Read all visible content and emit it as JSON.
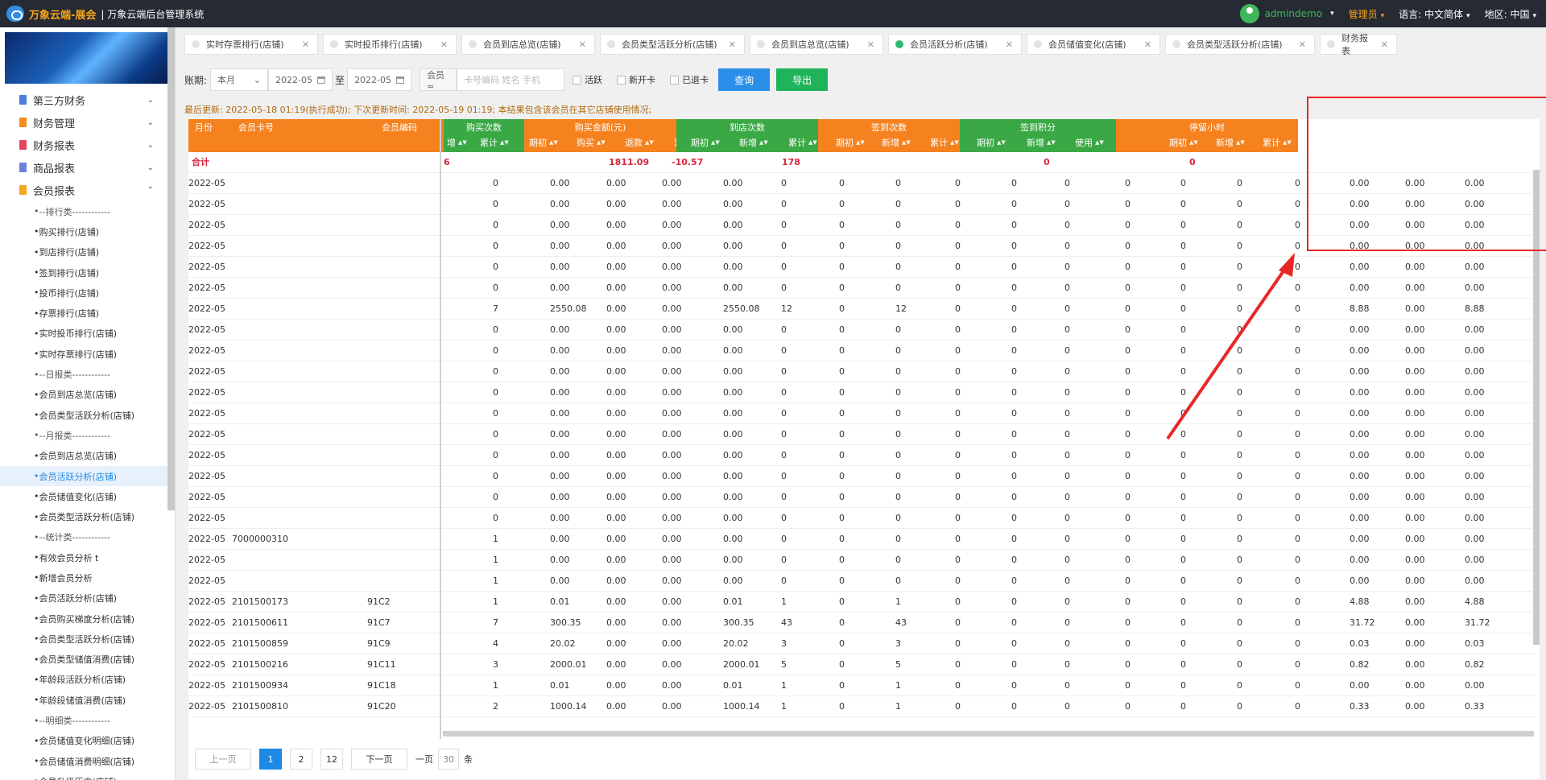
{
  "app": {
    "brand": "万象云端-展会",
    "subtitle": "| 万象云端后台管理系统"
  },
  "topbar": {
    "user": "admindemo",
    "role": "管理员",
    "lang_label": "语言:",
    "lang_value": "中文简体",
    "region_label": "地区:",
    "region_value": "中国"
  },
  "sidebar": {
    "groups": [
      {
        "label": "第三方财务",
        "color": "#4a7fd8"
      },
      {
        "label": "财务管理",
        "color": "#f58a1f"
      },
      {
        "label": "财务报表",
        "color": "#e8435f"
      },
      {
        "label": "商品报表",
        "color": "#6b7fe0"
      },
      {
        "label": "会员报表",
        "color": "#f5a623"
      }
    ],
    "items": [
      "--排行类------------",
      "购买排行(店铺)",
      "到店排行(店铺)",
      "签到排行(店铺)",
      "投币排行(店铺)",
      "存票排行(店铺)",
      "实时投币排行(店铺)",
      "实时存票排行(店铺)",
      "--日报类------------",
      "会员到店总览(店铺)",
      "会员类型活跃分析(店铺)",
      "--月报类------------",
      "会员到店总览(店铺)",
      "会员活跃分析(店铺)",
      "会员储值变化(店铺)",
      "会员类型活跃分析(店铺)",
      "--统计类------------",
      "有效会员分析 t",
      "新增会员分析",
      "会员活跃分析(店铺)",
      "会员购买梯度分析(店铺)",
      "会员类型活跃分析(店铺)",
      "会员类型储值消费(店铺)",
      "年龄段活跃分析(店铺)",
      "年龄段储值消费(店铺)",
      "--明细类------------",
      "会员储值变化明细(店铺)",
      "会员储值消费明细(店铺)",
      "会员升级历史(店铺)"
    ]
  },
  "tabs": [
    "实时存票排行(店铺)",
    "实时投币排行(店铺)",
    "会员到店总览(店铺)",
    "会员类型活跃分析(店铺)",
    "会员到店总览(店铺)",
    "会员活跃分析(店铺)",
    "会员储值变化(店铺)",
    "会员类型活跃分析(店铺)",
    "财务报表"
  ],
  "filter": {
    "label": "账期:",
    "period": "本月",
    "date_from": "2022-05",
    "to": "至",
    "date_to": "2022-05",
    "member": "会员 ≈",
    "placeholder": "卡号编码 姓名 手机",
    "checks": [
      "活跃",
      "新开卡",
      "已退卡"
    ],
    "query": "查询",
    "export": "导出"
  },
  "notice": "最后更新: 2022-05-18 01:19(执行成功); 下次更新时间: 2022-05-19 01:19; 本结果包含该会员在其它店铺使用情况;",
  "table": {
    "fixed_headers": [
      "月份",
      "会员卡号",
      "会员编码"
    ],
    "groups": [
      {
        "label": "购买次数",
        "sub": [
          "增",
          "累计"
        ]
      },
      {
        "label": "购买金额(元)",
        "sub": [
          "期初",
          "购买",
          "退款",
          "累计"
        ]
      },
      {
        "label": "到店次数",
        "sub": [
          "期初",
          "新增",
          "累计"
        ]
      },
      {
        "label": "签到次数",
        "sub": [
          "期初",
          "新增",
          "累计"
        ]
      },
      {
        "label": "签到积分",
        "sub": [
          "期初",
          "新增",
          "使用",
          "结存"
        ]
      },
      {
        "label": "停留小时",
        "sub": [
          "期初",
          "新增",
          "累计"
        ]
      }
    ],
    "summary": {
      "label": "合计",
      "buy_count": "6",
      "buy_amount": "1811.09",
      "refund": "-10.57",
      "visit": "178",
      "checkin": "0",
      "points": "0"
    },
    "rows": [
      [
        "2022-05",
        "",
        "",
        "0",
        "0.00",
        "0.00",
        "0.00",
        "0.00",
        "0",
        "0",
        "0",
        "0",
        "0",
        "0",
        "0",
        "0",
        "0",
        "0",
        "0.00",
        "0.00",
        "0.00"
      ],
      [
        "2022-05",
        "",
        "",
        "0",
        "0.00",
        "0.00",
        "0.00",
        "0.00",
        "0",
        "0",
        "0",
        "0",
        "0",
        "0",
        "0",
        "0",
        "0",
        "0",
        "0.00",
        "0.00",
        "0.00"
      ],
      [
        "2022-05",
        "",
        "",
        "0",
        "0.00",
        "0.00",
        "0.00",
        "0.00",
        "0",
        "0",
        "0",
        "0",
        "0",
        "0",
        "0",
        "0",
        "0",
        "0",
        "0.00",
        "0.00",
        "0.00"
      ],
      [
        "2022-05",
        "",
        "",
        "0",
        "0.00",
        "0.00",
        "0.00",
        "0.00",
        "0",
        "0",
        "0",
        "0",
        "0",
        "0",
        "0",
        "0",
        "0",
        "0",
        "0.00",
        "0.00",
        "0.00"
      ],
      [
        "2022-05",
        "",
        "",
        "0",
        "0.00",
        "0.00",
        "0.00",
        "0.00",
        "0",
        "0",
        "0",
        "0",
        "0",
        "0",
        "0",
        "0",
        "0",
        "0",
        "0.00",
        "0.00",
        "0.00"
      ],
      [
        "2022-05",
        "",
        "",
        "0",
        "0.00",
        "0.00",
        "0.00",
        "0.00",
        "0",
        "0",
        "0",
        "0",
        "0",
        "0",
        "0",
        "0",
        "0",
        "0",
        "0.00",
        "0.00",
        "0.00"
      ],
      [
        "2022-05",
        "",
        "",
        "7",
        "2550.08",
        "0.00",
        "0.00",
        "2550.08",
        "12",
        "0",
        "12",
        "0",
        "0",
        "0",
        "0",
        "0",
        "0",
        "0",
        "8.88",
        "0.00",
        "8.88"
      ],
      [
        "2022-05",
        "",
        "",
        "0",
        "0.00",
        "0.00",
        "0.00",
        "0.00",
        "0",
        "0",
        "0",
        "0",
        "0",
        "0",
        "0",
        "0",
        "0",
        "0",
        "0.00",
        "0.00",
        "0.00"
      ],
      [
        "2022-05",
        "",
        "",
        "0",
        "0.00",
        "0.00",
        "0.00",
        "0.00",
        "0",
        "0",
        "0",
        "0",
        "0",
        "0",
        "0",
        "0",
        "0",
        "0",
        "0.00",
        "0.00",
        "0.00"
      ],
      [
        "2022-05",
        "",
        "",
        "0",
        "0.00",
        "0.00",
        "0.00",
        "0.00",
        "0",
        "0",
        "0",
        "0",
        "0",
        "0",
        "0",
        "0",
        "0",
        "0",
        "0.00",
        "0.00",
        "0.00"
      ],
      [
        "2022-05",
        "",
        "",
        "0",
        "0.00",
        "0.00",
        "0.00",
        "0.00",
        "0",
        "0",
        "0",
        "0",
        "0",
        "0",
        "0",
        "0",
        "0",
        "0",
        "0.00",
        "0.00",
        "0.00"
      ],
      [
        "2022-05",
        "",
        "",
        "0",
        "0.00",
        "0.00",
        "0.00",
        "0.00",
        "0",
        "0",
        "0",
        "0",
        "0",
        "0",
        "0",
        "0",
        "0",
        "0",
        "0.00",
        "0.00",
        "0.00"
      ],
      [
        "2022-05",
        "",
        "",
        "0",
        "0.00",
        "0.00",
        "0.00",
        "0.00",
        "0",
        "0",
        "0",
        "0",
        "0",
        "0",
        "0",
        "0",
        "0",
        "0",
        "0.00",
        "0.00",
        "0.00"
      ],
      [
        "2022-05",
        "",
        "",
        "0",
        "0.00",
        "0.00",
        "0.00",
        "0.00",
        "0",
        "0",
        "0",
        "0",
        "0",
        "0",
        "0",
        "0",
        "0",
        "0",
        "0.00",
        "0.00",
        "0.00"
      ],
      [
        "2022-05",
        "",
        "",
        "0",
        "0.00",
        "0.00",
        "0.00",
        "0.00",
        "0",
        "0",
        "0",
        "0",
        "0",
        "0",
        "0",
        "0",
        "0",
        "0",
        "0.00",
        "0.00",
        "0.00"
      ],
      [
        "2022-05",
        "",
        "",
        "0",
        "0.00",
        "0.00",
        "0.00",
        "0.00",
        "0",
        "0",
        "0",
        "0",
        "0",
        "0",
        "0",
        "0",
        "0",
        "0",
        "0.00",
        "0.00",
        "0.00"
      ],
      [
        "2022-05",
        "",
        "",
        "0",
        "0.00",
        "0.00",
        "0.00",
        "0.00",
        "0",
        "0",
        "0",
        "0",
        "0",
        "0",
        "0",
        "0",
        "0",
        "0",
        "0.00",
        "0.00",
        "0.00"
      ],
      [
        "2022-05",
        "7000000310",
        "",
        "1",
        "0.00",
        "0.00",
        "0.00",
        "0.00",
        "0",
        "0",
        "0",
        "0",
        "0",
        "0",
        "0",
        "0",
        "0",
        "0",
        "0.00",
        "0.00",
        "0.00"
      ],
      [
        "2022-05",
        "",
        "",
        "1",
        "0.00",
        "0.00",
        "0.00",
        "0.00",
        "0",
        "0",
        "0",
        "0",
        "0",
        "0",
        "0",
        "0",
        "0",
        "0",
        "0.00",
        "0.00",
        "0.00"
      ],
      [
        "2022-05",
        "",
        "",
        "1",
        "0.00",
        "0.00",
        "0.00",
        "0.00",
        "0",
        "0",
        "0",
        "0",
        "0",
        "0",
        "0",
        "0",
        "0",
        "0",
        "0.00",
        "0.00",
        "0.00"
      ],
      [
        "2022-05",
        "2101500173",
        "91C2",
        "1",
        "0.01",
        "0.00",
        "0.00",
        "0.01",
        "1",
        "0",
        "1",
        "0",
        "0",
        "0",
        "0",
        "0",
        "0",
        "0",
        "4.88",
        "0.00",
        "4.88"
      ],
      [
        "2022-05",
        "2101500611",
        "91C7",
        "7",
        "300.35",
        "0.00",
        "0.00",
        "300.35",
        "43",
        "0",
        "43",
        "0",
        "0",
        "0",
        "0",
        "0",
        "0",
        "0",
        "31.72",
        "0.00",
        "31.72"
      ],
      [
        "2022-05",
        "2101500859",
        "91C9",
        "4",
        "20.02",
        "0.00",
        "0.00",
        "20.02",
        "3",
        "0",
        "3",
        "0",
        "0",
        "0",
        "0",
        "0",
        "0",
        "0",
        "0.03",
        "0.00",
        "0.03"
      ],
      [
        "2022-05",
        "2101500216",
        "91C11",
        "3",
        "2000.01",
        "0.00",
        "0.00",
        "2000.01",
        "5",
        "0",
        "5",
        "0",
        "0",
        "0",
        "0",
        "0",
        "0",
        "0",
        "0.82",
        "0.00",
        "0.82"
      ],
      [
        "2022-05",
        "2101500934",
        "91C18",
        "1",
        "0.01",
        "0.00",
        "0.00",
        "0.01",
        "1",
        "0",
        "1",
        "0",
        "0",
        "0",
        "0",
        "0",
        "0",
        "0",
        "0.00",
        "0.00",
        "0.00"
      ],
      [
        "2022-05",
        "2101500810",
        "91C20",
        "2",
        "1000.14",
        "0.00",
        "0.00",
        "1000.14",
        "1",
        "0",
        "1",
        "0",
        "0",
        "0",
        "0",
        "0",
        "0",
        "0",
        "0.33",
        "0.00",
        "0.33"
      ]
    ]
  },
  "pager": {
    "prev": "上一页",
    "pages": [
      "1",
      "2",
      "12"
    ],
    "next": "下一页",
    "per_label": "一页",
    "per_value": "30",
    "per_unit": "条"
  },
  "colors": {
    "orange": "#f5821f",
    "green": "#3aa845",
    "blue": "#1e88e5"
  }
}
